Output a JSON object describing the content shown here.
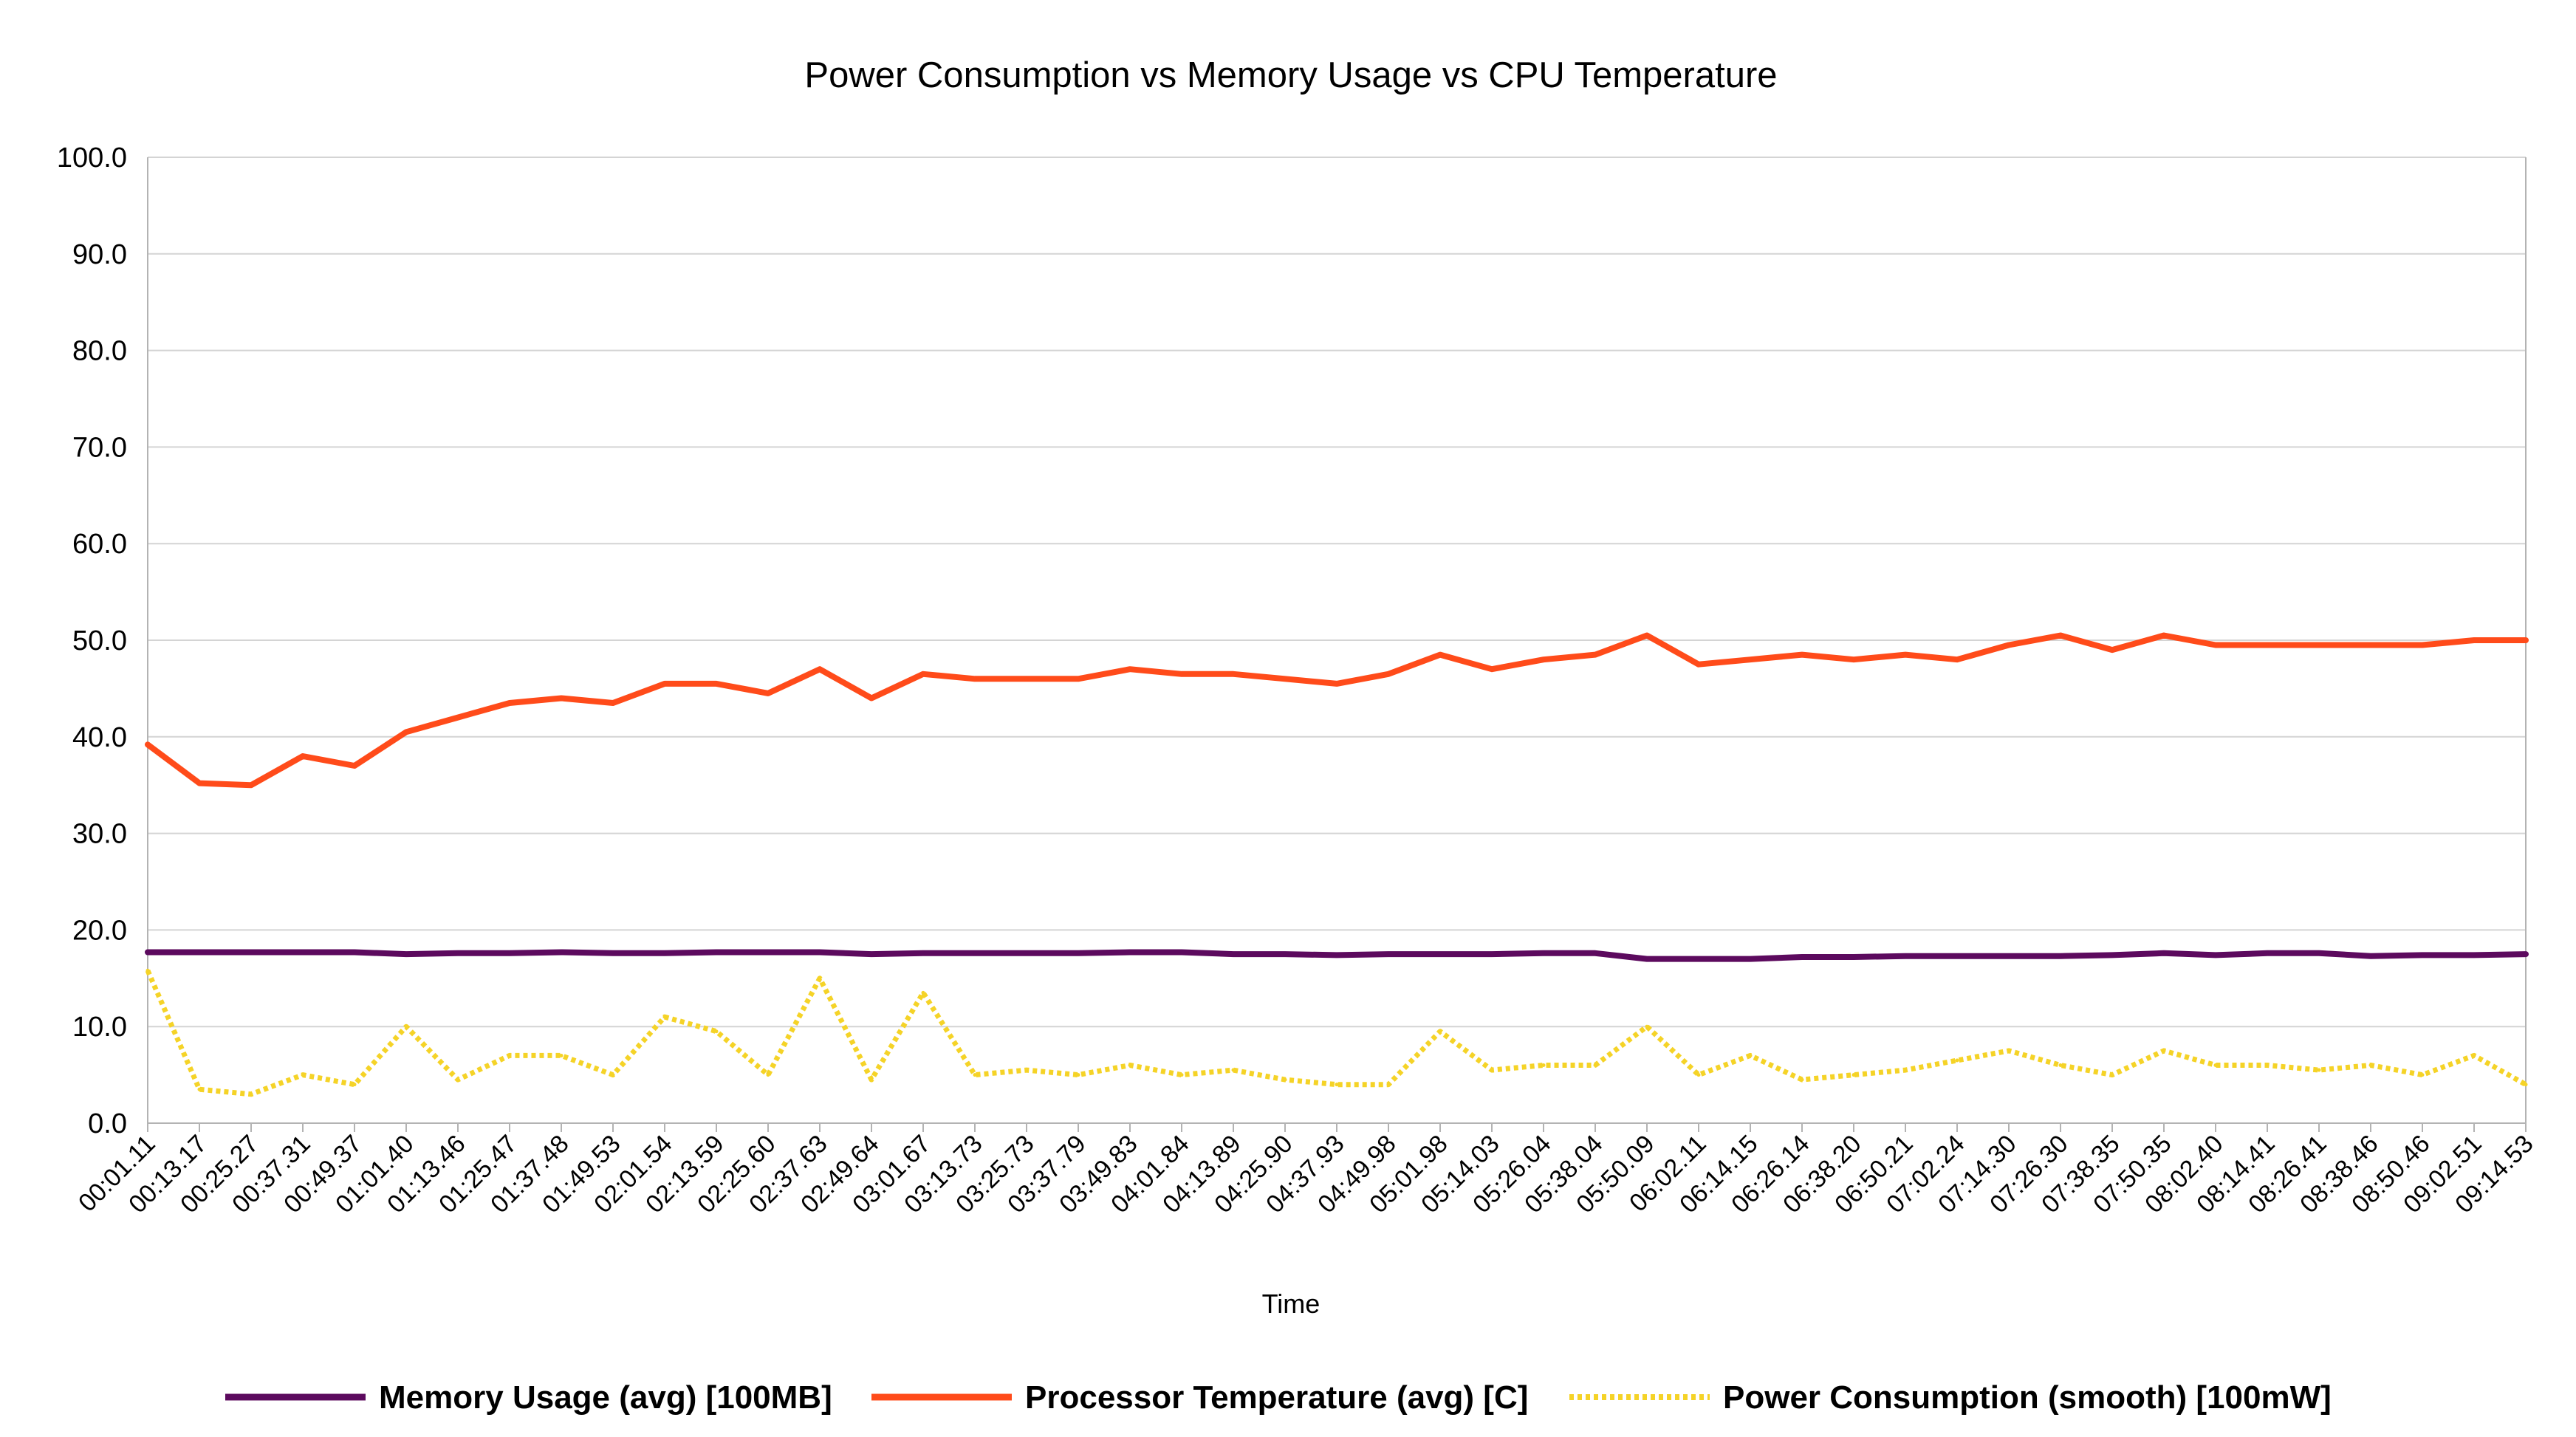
{
  "chart_data": {
    "type": "line",
    "title": "Power Consumption vs Memory Usage  vs CPU Temperature",
    "xlabel": "Time",
    "ylabel": "",
    "ylim": [
      0,
      100
    ],
    "yticks": [
      "0.0",
      "10.0",
      "20.0",
      "30.0",
      "40.0",
      "50.0",
      "60.0",
      "70.0",
      "80.0",
      "90.0",
      "100.0"
    ],
    "grid": true,
    "legend_position": "bottom",
    "x": [
      "00:01.11",
      "00:13.17",
      "00:25.27",
      "00:37.31",
      "00:49.37",
      "01:01.40",
      "01:13.46",
      "01:25.47",
      "01:37.48",
      "01:49.53",
      "02:01.54",
      "02:13.59",
      "02:25.60",
      "02:37.63",
      "02:49.64",
      "03:01.67",
      "03:13.73",
      "03:25.73",
      "03:37.79",
      "03:49.83",
      "04:01.84",
      "04:13.89",
      "04:25.90",
      "04:37.93",
      "04:49.98",
      "05:01.98",
      "05:14.03",
      "05:26.04",
      "05:38.04",
      "05:50.09",
      "06:02.11",
      "06:14.15",
      "06:26.14",
      "06:38.20",
      "06:50.21",
      "07:02.24",
      "07:14.30",
      "07:26.30",
      "07:38.35",
      "07:50.35",
      "08:02.40",
      "08:14.41",
      "08:26.41",
      "08:38.46",
      "08:50.46",
      "09:02.51",
      "09:14.53"
    ],
    "series": [
      {
        "name": "Memory Usage (avg) [100MB]",
        "color": "#5c0a5e",
        "style": "solid",
        "values": [
          17.7,
          17.7,
          17.7,
          17.7,
          17.7,
          17.5,
          17.6,
          17.6,
          17.7,
          17.6,
          17.6,
          17.7,
          17.7,
          17.7,
          17.5,
          17.6,
          17.6,
          17.6,
          17.6,
          17.7,
          17.7,
          17.5,
          17.5,
          17.4,
          17.5,
          17.5,
          17.5,
          17.6,
          17.6,
          17.0,
          17.0,
          17.0,
          17.2,
          17.2,
          17.3,
          17.3,
          17.3,
          17.3,
          17.4,
          17.6,
          17.4,
          17.6,
          17.6,
          17.3,
          17.4,
          17.4,
          17.5
        ]
      },
      {
        "name": "Processor Temperature (avg) [C]",
        "color": "#ff4b1a",
        "style": "solid",
        "values": [
          39.2,
          35.2,
          35.0,
          38.0,
          37.0,
          40.5,
          42.0,
          43.5,
          44.0,
          43.5,
          45.5,
          45.5,
          44.5,
          47.0,
          44.0,
          46.5,
          46.0,
          46.0,
          46.0,
          47.0,
          46.5,
          46.5,
          46.0,
          45.5,
          46.5,
          48.5,
          47.0,
          48.0,
          48.5,
          50.5,
          47.5,
          48.0,
          48.5,
          48.0,
          48.5,
          48.0,
          49.5,
          50.5,
          49.0,
          50.5,
          49.5,
          49.5,
          49.5,
          49.5,
          49.5,
          50.0,
          50.0
        ]
      },
      {
        "name": "Power Consumption (smooth) [100mW]",
        "color": "#f5d327",
        "style": "dotted",
        "values": [
          15.8,
          3.5,
          3.0,
          5.0,
          4.0,
          10.0,
          4.5,
          7.0,
          7.0,
          5.0,
          11.0,
          9.5,
          5.0,
          15.0,
          4.5,
          13.5,
          5.0,
          5.5,
          5.0,
          6.0,
          5.0,
          5.5,
          4.5,
          4.0,
          4.0,
          9.5,
          5.5,
          6.0,
          6.0,
          10.0,
          5.0,
          7.0,
          4.5,
          5.0,
          5.5,
          6.5,
          7.5,
          6.0,
          5.0,
          7.5,
          6.0,
          6.0,
          5.5,
          6.0,
          5.0,
          7.0,
          4.0
        ]
      }
    ]
  }
}
